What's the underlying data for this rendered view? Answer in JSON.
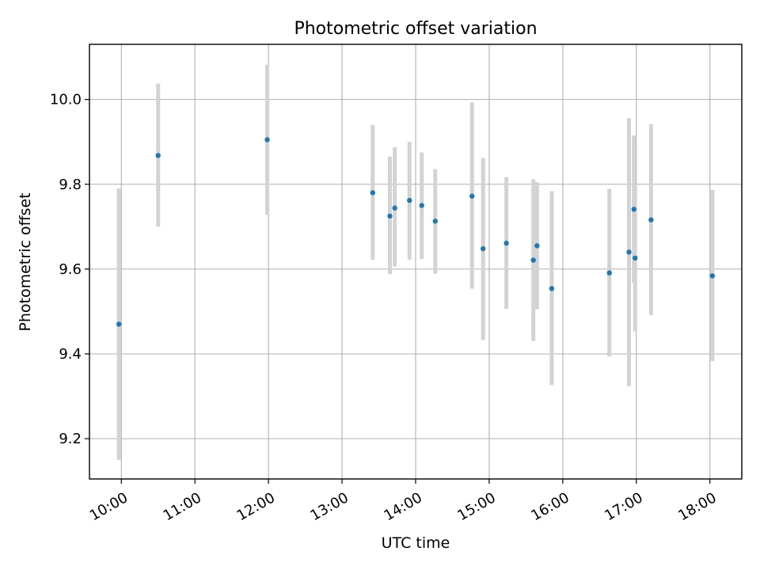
{
  "chart_data": {
    "type": "scatter",
    "title": "Photometric offset variation",
    "xlabel": "UTC time",
    "ylabel": "Photometric offset",
    "xlim": [
      "09:34",
      "18:26"
    ],
    "ylim": [
      9.105,
      10.13
    ],
    "grid": true,
    "x_ticks": [
      "10:00",
      "11:00",
      "12:00",
      "13:00",
      "14:00",
      "15:00",
      "16:00",
      "17:00",
      "18:00"
    ],
    "y_ticks": [
      9.2,
      9.4,
      9.6,
      9.8,
      10.0
    ],
    "y_tick_labels": [
      "9.2",
      "9.4",
      "9.6",
      "9.8",
      "10.0"
    ],
    "colors": {
      "points": "#1f77b4",
      "error_bars": "#d3d3d3",
      "grid": "#b0b0b0"
    },
    "points": [
      {
        "time": "09:58",
        "value": 9.47,
        "err_low": 9.15,
        "err_high": 9.79
      },
      {
        "time": "10:30",
        "value": 9.868,
        "err_low": 9.7,
        "err_high": 10.037
      },
      {
        "time": "11:59",
        "value": 9.905,
        "err_low": 9.728,
        "err_high": 10.082
      },
      {
        "time": "13:25",
        "value": 9.78,
        "err_low": 9.622,
        "err_high": 9.94
      },
      {
        "time": "13:39",
        "value": 9.725,
        "err_low": 9.588,
        "err_high": 9.865
      },
      {
        "time": "13:43",
        "value": 9.744,
        "err_low": 9.606,
        "err_high": 9.887
      },
      {
        "time": "13:55",
        "value": 9.762,
        "err_low": 9.622,
        "err_high": 9.9
      },
      {
        "time": "14:05",
        "value": 9.75,
        "err_low": 9.624,
        "err_high": 9.875
      },
      {
        "time": "14:16",
        "value": 9.713,
        "err_low": 9.589,
        "err_high": 9.836
      },
      {
        "time": "14:46",
        "value": 9.772,
        "err_low": 9.554,
        "err_high": 9.993
      },
      {
        "time": "14:55",
        "value": 9.648,
        "err_low": 9.433,
        "err_high": 9.862
      },
      {
        "time": "15:14",
        "value": 9.661,
        "err_low": 9.506,
        "err_high": 9.817
      },
      {
        "time": "15:36",
        "value": 9.621,
        "err_low": 9.43,
        "err_high": 9.812
      },
      {
        "time": "15:39",
        "value": 9.655,
        "err_low": 9.505,
        "err_high": 9.805
      },
      {
        "time": "15:51",
        "value": 9.554,
        "err_low": 9.326,
        "err_high": 9.784
      },
      {
        "time": "16:38",
        "value": 9.591,
        "err_low": 9.394,
        "err_high": 9.789
      },
      {
        "time": "16:54",
        "value": 9.64,
        "err_low": 9.324,
        "err_high": 9.956
      },
      {
        "time": "16:58",
        "value": 9.741,
        "err_low": 9.567,
        "err_high": 9.915
      },
      {
        "time": "16:59",
        "value": 9.626,
        "err_low": 9.453,
        "err_high": 9.8
      },
      {
        "time": "17:12",
        "value": 9.716,
        "err_low": 9.491,
        "err_high": 9.942
      },
      {
        "time": "18:02",
        "value": 9.584,
        "err_low": 9.383,
        "err_high": 9.787
      }
    ]
  }
}
